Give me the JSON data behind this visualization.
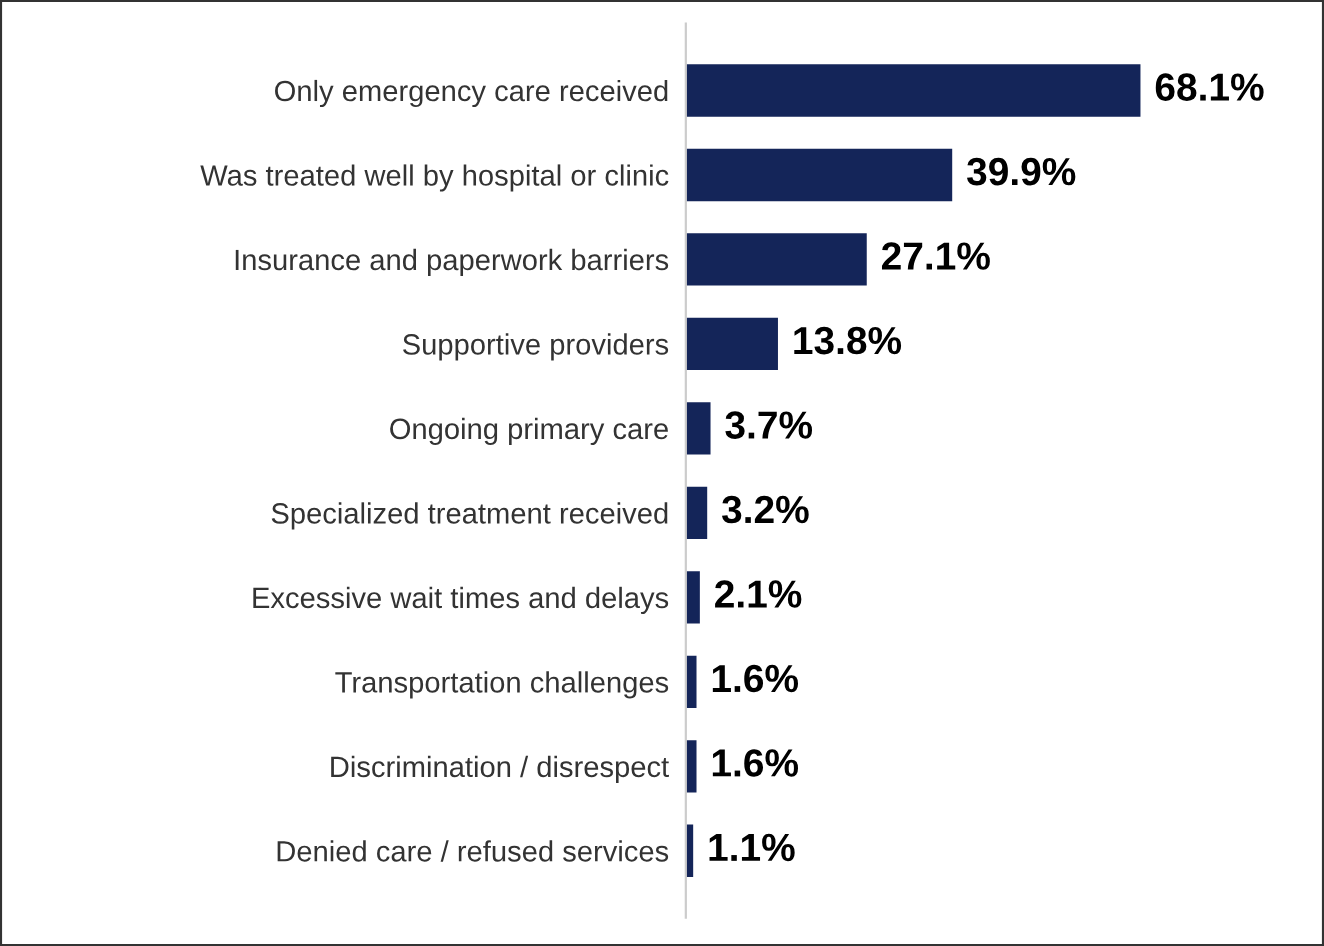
{
  "chart_data": {
    "type": "bar",
    "orientation": "horizontal",
    "categories": [
      "Only emergency care received",
      "Was treated well by hospital or clinic",
      "Insurance and paperwork barriers",
      "Supportive providers",
      "Ongoing primary care",
      "Specialized treatment received",
      "Excessive wait times and delays",
      "Transportation challenges",
      "Discrimination / disrespect",
      "Denied care / refused services"
    ],
    "values": [
      68.1,
      39.9,
      27.1,
      13.8,
      3.7,
      3.2,
      2.1,
      1.6,
      1.6,
      1.1
    ],
    "value_labels": [
      "68.1%",
      "39.9%",
      "27.1%",
      "13.8%",
      "3.7%",
      "3.2%",
      "2.1%",
      "1.6%",
      "1.6%",
      "1.1%"
    ],
    "color": "#142559",
    "grid": false,
    "legend": false
  }
}
